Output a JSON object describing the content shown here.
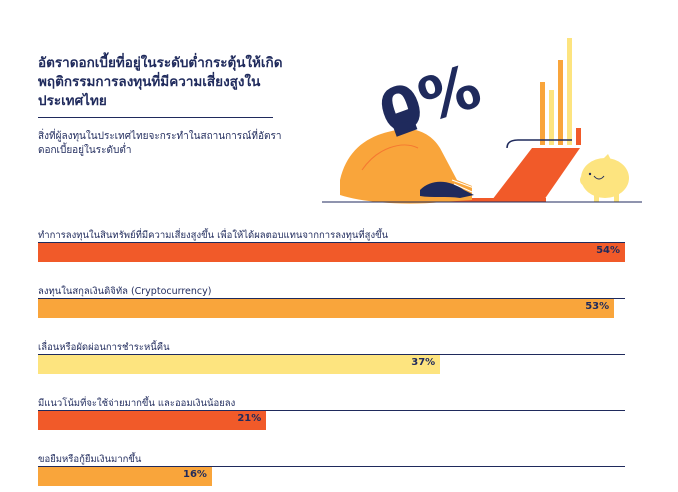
{
  "title": "อัตราดอกเบี้ยที่อยู่ในระดับต่ำกระตุ้นให้เกิดพฤติกรรมการลงทุนที่มีความเสี่ยงสูงในประเทศไทย",
  "subtitle": "สิ่งที่ผู้ลงทุนในประเทศไทยจะกระทำในสถานการณ์ที่อัตราดอกเบี้ยอยู่ในระดับต่ำ",
  "illustration_text": "0%",
  "colors": {
    "navy": "#1f2a5c",
    "red_orange": "#f15a29",
    "orange": "#f9a53b",
    "yellow": "#fde47f"
  },
  "chart_data": {
    "type": "bar",
    "orientation": "horizontal",
    "xlim": [
      0,
      54
    ],
    "categories": [
      "ทำการลงทุนในสินทรัพย์ที่มีความเสี่ยงสูงขึ้น เพื่อให้ได้ผลตอบแทนจากการลงทุนที่สูงขึ้น",
      "ลงทุนในสกุลเงินดิจิทัล (Cryptocurrency)",
      "เลื่อนหรือผัดผ่อนการชำระหนี้คืน",
      "มีแนวโน้มที่จะใช้จ่ายมากขึ้น และออมเงินน้อยลง",
      "ขอยืมหรือกู้ยืมเงินมากขึ้น"
    ],
    "values": [
      54,
      53,
      37,
      21,
      16
    ],
    "value_labels": [
      "54%",
      "53%",
      "37%",
      "21%",
      "16%"
    ],
    "bar_colors": [
      "#f15a29",
      "#f9a53b",
      "#fde47f",
      "#f15a29",
      "#f9a53b"
    ]
  }
}
